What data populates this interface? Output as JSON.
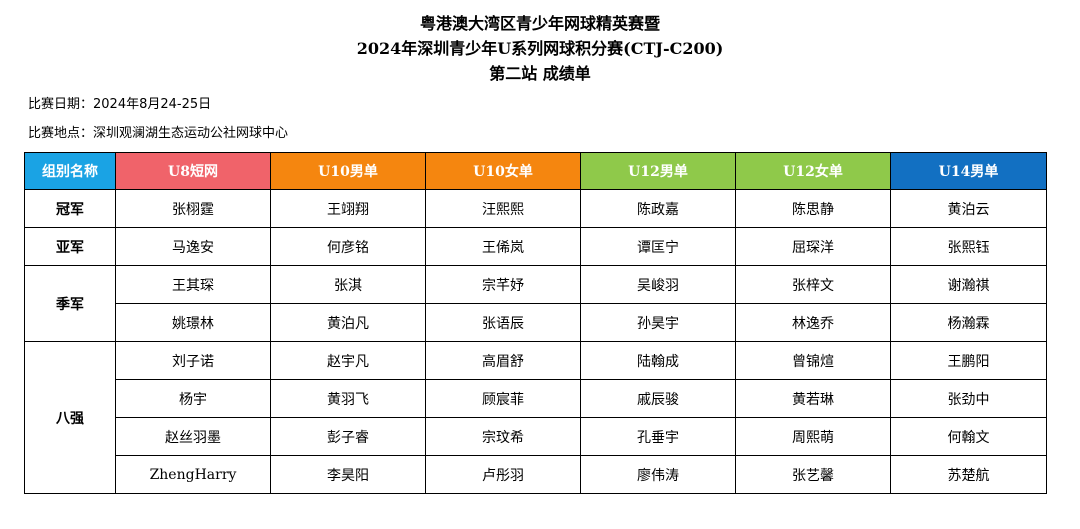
{
  "title": {
    "line1": "粤港澳大湾区青少年网球精英赛暨",
    "line2": "2024年深圳青少年U系列网球积分赛(CTJ-C200)",
    "line3": "第二站  成绩单"
  },
  "info": {
    "date": "比赛日期：2024年8月24-25日",
    "venue": "比赛地点：深圳观澜湖生态运动公社网球中心"
  },
  "table": {
    "headers": [
      "组别名称",
      "U8短网",
      "U10男单",
      "U10女单",
      "U12男单",
      "U12女单",
      "U14男单"
    ],
    "header_colors": [
      "#1aa3e4",
      "#f0636a",
      "#f5860f",
      "#f5860f",
      "#8fc94a",
      "#8fc94a",
      "#1270c2"
    ],
    "ranks": [
      "冠军",
      "亚军",
      "季军",
      "八强"
    ],
    "rows": [
      [
        "张栩霆",
        "王翊翔",
        "汪熙熙",
        "陈政嘉",
        "陈思静",
        "黄泊云"
      ],
      [
        "马逸安",
        "何彦铭",
        "王俙岚",
        "谭匡宁",
        "屈琛洋",
        "张熙钰"
      ],
      [
        "王其琛",
        "张淇",
        "宗芊妤",
        "吴峻羽",
        "张梓文",
        "谢瀚祺"
      ],
      [
        "姚璟林",
        "黄泊凡",
        "张语辰",
        "孙昊宇",
        "林逸乔",
        "杨瀚霖"
      ],
      [
        "刘子诺",
        "赵宇凡",
        "高眉舒",
        "陆翰成",
        "曾锦煊",
        "王鹏阳"
      ],
      [
        "杨宇",
        "黄羽飞",
        "顾宸菲",
        "戚辰骏",
        "黄若琳",
        "张劲中"
      ],
      [
        "赵丝羽墨",
        "彭子睿",
        "宗玟希",
        "孔垂宇",
        "周熙萌",
        "何翰文"
      ],
      [
        "ZhengHarry",
        "李昊阳",
        "卢彤羽",
        "廖伟涛",
        "张艺馨",
        "苏楚航"
      ]
    ]
  }
}
